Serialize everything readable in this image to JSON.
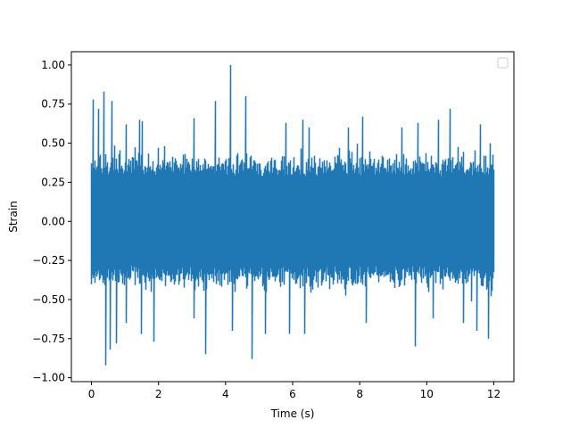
{
  "chart_data": {
    "type": "line",
    "title": "",
    "xlabel": "Time (s)",
    "ylabel": "Strain",
    "xlim": [
      -0.6,
      12.6
    ],
    "ylim": [
      -1.025,
      1.085
    ],
    "xticks": [
      0,
      2,
      4,
      6,
      8,
      10,
      12
    ],
    "yticks": [
      -1.0,
      -0.75,
      -0.5,
      -0.25,
      0.0,
      0.25,
      0.5,
      0.75,
      1.0
    ],
    "xtick_labels": [
      "0",
      "2",
      "4",
      "6",
      "8",
      "10",
      "12"
    ],
    "ytick_labels": [
      "−1.00",
      "−0.75",
      "−0.50",
      "−0.25",
      "0.00",
      "0.25",
      "0.50",
      "0.75",
      "1.00"
    ],
    "grid": false,
    "legend": {
      "placement": "top-right",
      "entries": []
    },
    "series": [
      {
        "color": "#1f77b4",
        "x_start": 0.0,
        "x_end": 12.0,
        "sample_count": 48000,
        "y_min": -0.92,
        "y_max": 1.0,
        "peaks": [
          {
            "x": 0.05,
            "y": 0.78
          },
          {
            "x": 0.22,
            "y": 0.72
          },
          {
            "x": 0.37,
            "y": 0.83
          },
          {
            "x": 0.6,
            "y": 0.77
          },
          {
            "x": 1.05,
            "y": 0.62
          },
          {
            "x": 1.43,
            "y": 0.65
          },
          {
            "x": 1.52,
            "y": 0.64
          },
          {
            "x": 3.07,
            "y": 0.66
          },
          {
            "x": 3.7,
            "y": 0.77
          },
          {
            "x": 4.15,
            "y": 1.0
          },
          {
            "x": 4.6,
            "y": 0.8
          },
          {
            "x": 5.8,
            "y": 0.63
          },
          {
            "x": 6.3,
            "y": 0.65
          },
          {
            "x": 6.5,
            "y": 0.6
          },
          {
            "x": 7.65,
            "y": 0.6
          },
          {
            "x": 8.1,
            "y": 0.67
          },
          {
            "x": 9.25,
            "y": 0.6
          },
          {
            "x": 9.75,
            "y": 0.63
          },
          {
            "x": 10.35,
            "y": 0.65
          },
          {
            "x": 10.7,
            "y": 0.72
          },
          {
            "x": 11.6,
            "y": 0.62
          },
          {
            "x": 11.9,
            "y": 0.5
          }
        ],
        "troughs": [
          {
            "x": 0.43,
            "y": -0.92
          },
          {
            "x": 0.55,
            "y": -0.82
          },
          {
            "x": 0.75,
            "y": -0.78
          },
          {
            "x": 1.05,
            "y": -0.65
          },
          {
            "x": 1.5,
            "y": -0.72
          },
          {
            "x": 1.85,
            "y": -0.77
          },
          {
            "x": 3.07,
            "y": -0.62
          },
          {
            "x": 3.4,
            "y": -0.85
          },
          {
            "x": 4.2,
            "y": -0.7
          },
          {
            "x": 4.8,
            "y": -0.88
          },
          {
            "x": 5.2,
            "y": -0.72
          },
          {
            "x": 5.9,
            "y": -0.72
          },
          {
            "x": 6.35,
            "y": -0.72
          },
          {
            "x": 8.2,
            "y": -0.65
          },
          {
            "x": 9.65,
            "y": -0.8
          },
          {
            "x": 10.2,
            "y": -0.62
          },
          {
            "x": 11.1,
            "y": -0.65
          },
          {
            "x": 11.5,
            "y": -0.7
          },
          {
            "x": 11.85,
            "y": -0.75
          }
        ]
      }
    ]
  }
}
